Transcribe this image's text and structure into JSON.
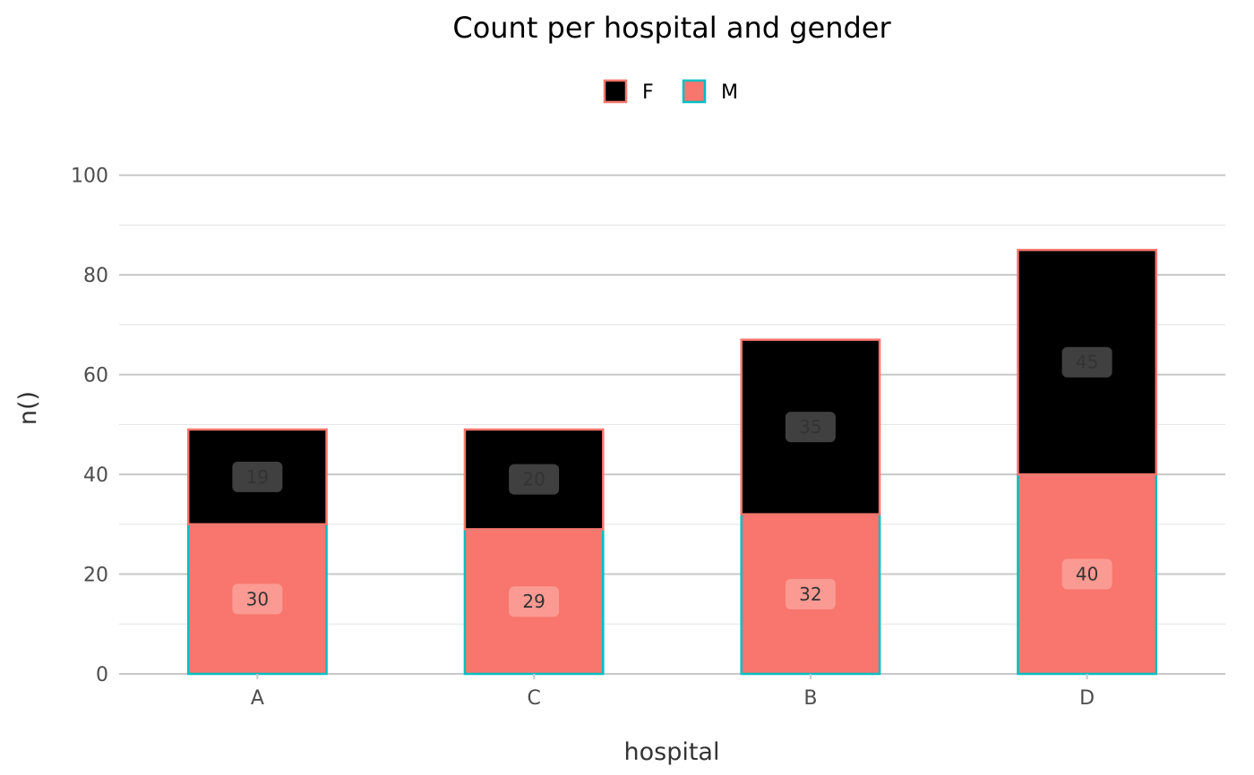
{
  "chart_data": {
    "type": "bar",
    "stacked": true,
    "title": "Count per hospital and gender",
    "xlabel": "hospital",
    "ylabel": "n()",
    "categories": [
      "A",
      "C",
      "B",
      "D"
    ],
    "series": [
      {
        "name": "M",
        "values": [
          30,
          29,
          32,
          40
        ],
        "fill": "#F8766D",
        "outline": "#00BFC4",
        "label_fill": "#fa9a93",
        "labels": [
          "30",
          "29",
          "32",
          "40"
        ]
      },
      {
        "name": "F",
        "values": [
          19,
          20,
          35,
          45
        ],
        "fill": "#000000",
        "outline": "#F8766D",
        "label_fill": "#404040",
        "labels": [
          "19",
          "20",
          "35",
          "45"
        ]
      }
    ],
    "legend": [
      {
        "name": "F",
        "fill": "#000000",
        "outline": "#F8766D"
      },
      {
        "name": "M",
        "fill": "#F8766D",
        "outline": "#00BFC4"
      }
    ],
    "legend_position": "top",
    "ylim": [
      0,
      110
    ],
    "yticks": [
      0,
      20,
      40,
      60,
      80,
      100
    ],
    "yticks_minor": [
      10,
      30,
      50,
      70,
      90
    ],
    "grid": true
  }
}
